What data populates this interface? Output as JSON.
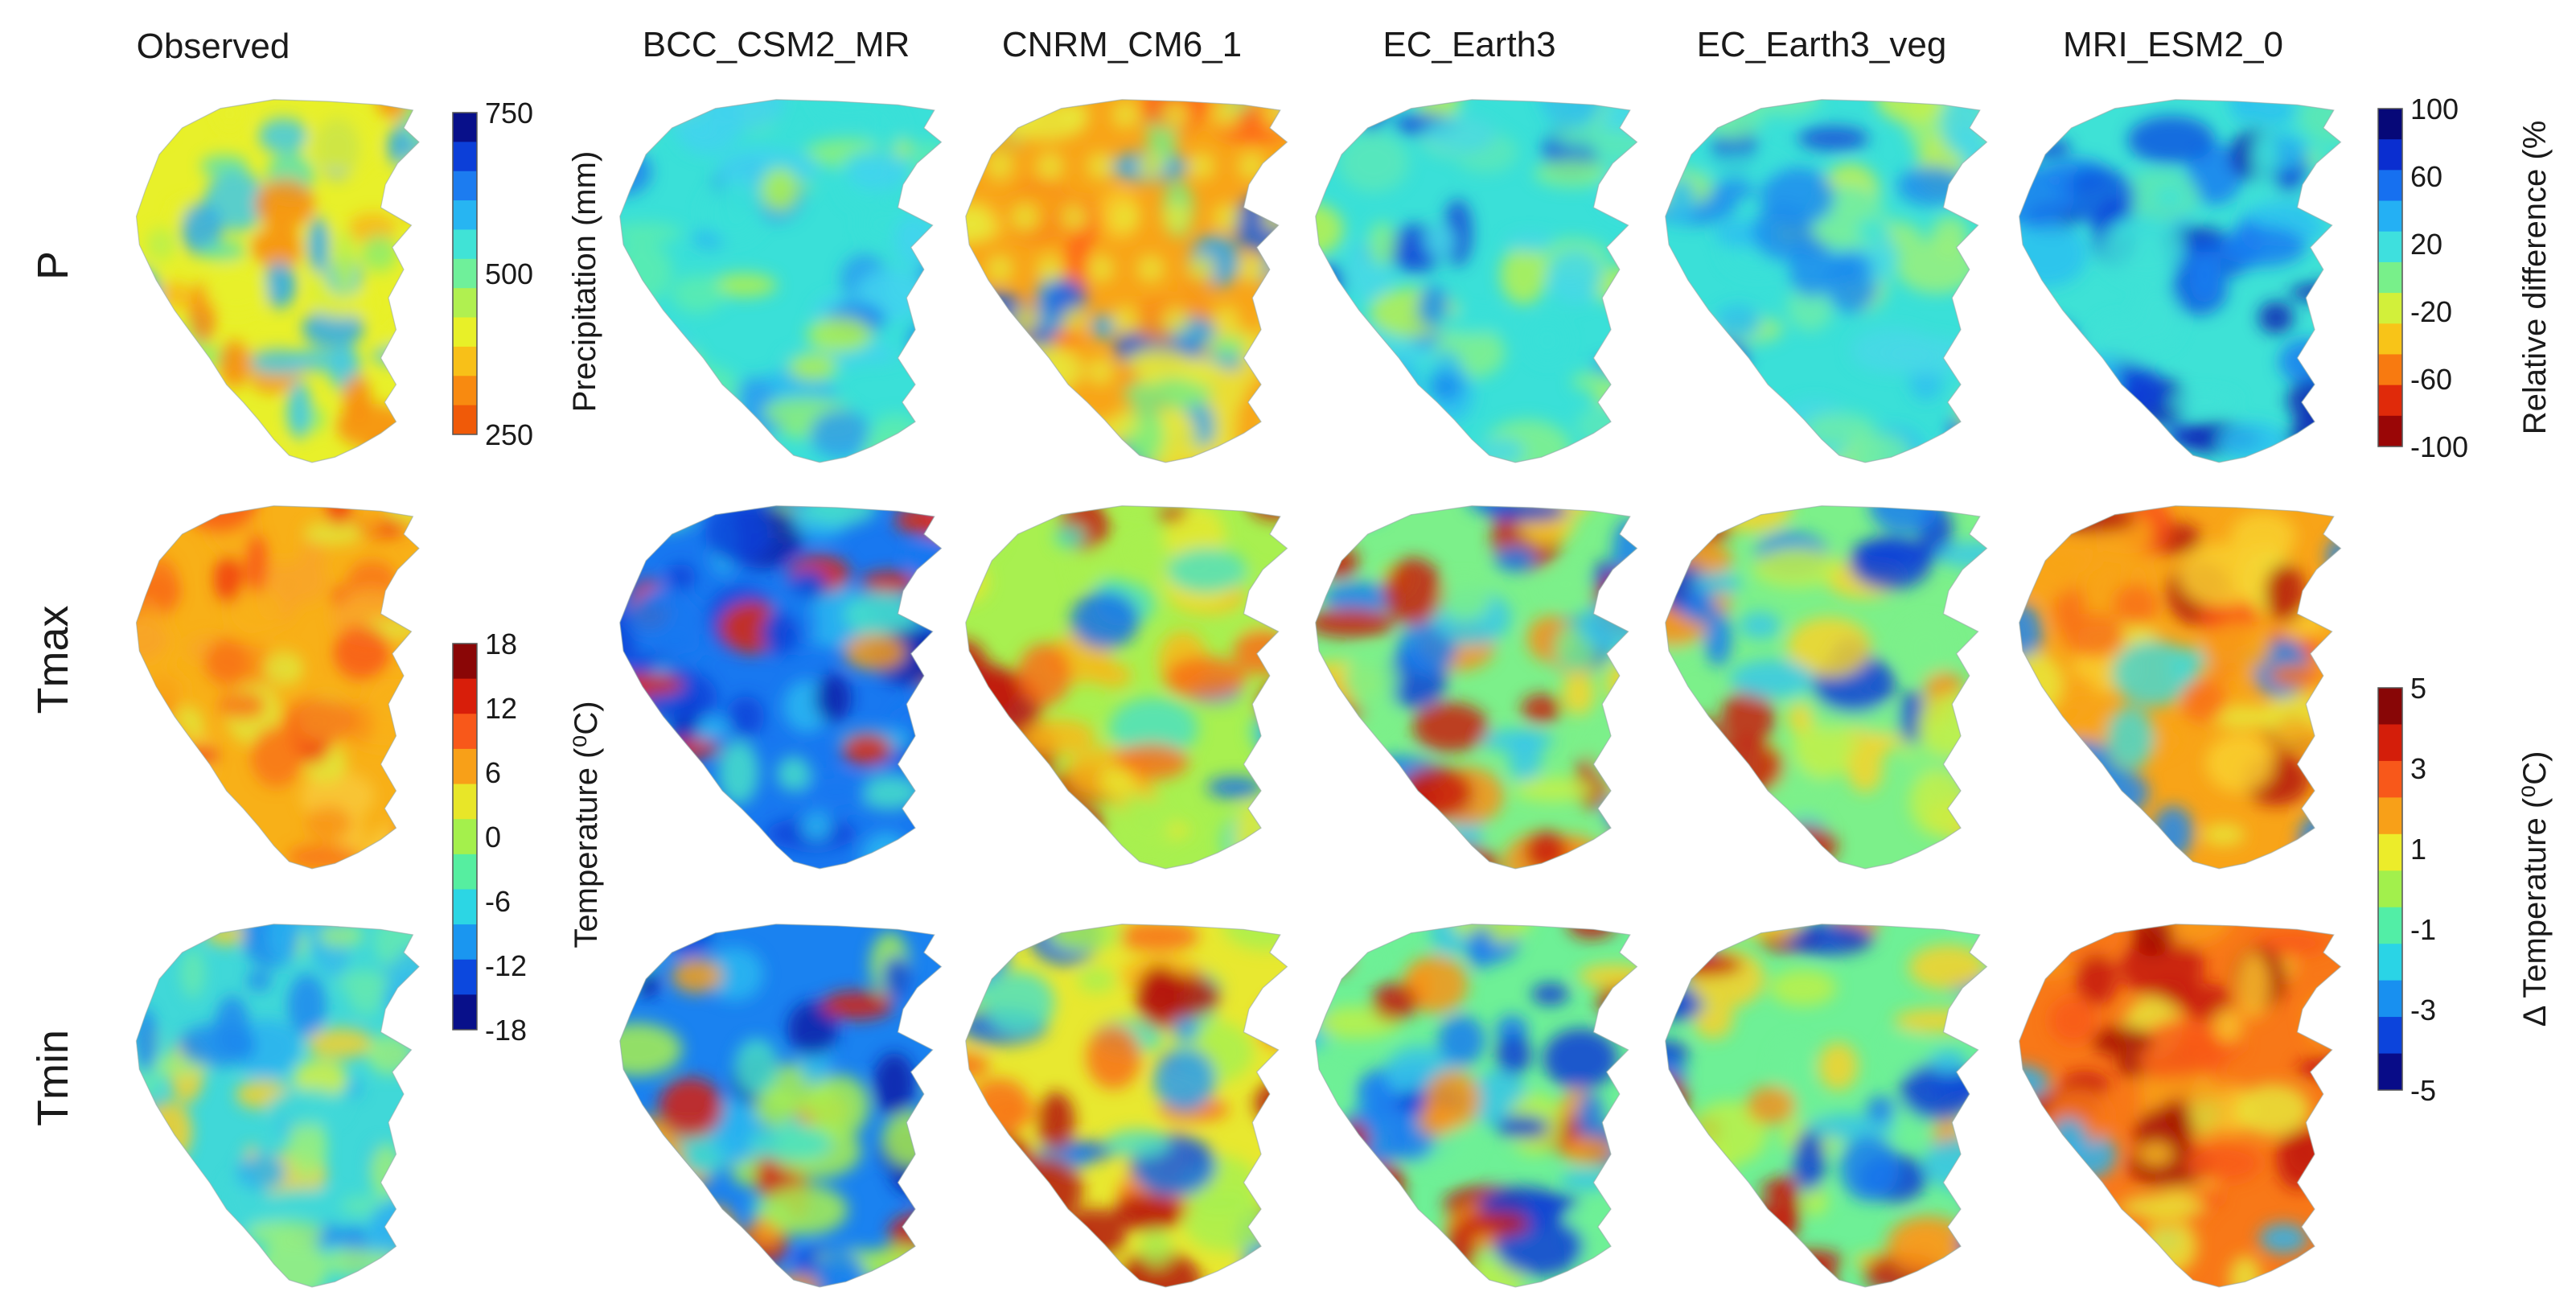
{
  "columns": [
    "Observed",
    "BCC_CSM2_MR",
    "CNRM_CM6_1",
    "EC_Earth3",
    "EC_Earth3_veg",
    "MRI_ESM2_0"
  ],
  "rows": [
    "P",
    "Tmax",
    "Tmin"
  ],
  "colorbars": {
    "precip": {
      "label": "Precipitation (mm)",
      "ticks": [
        "750",
        "500",
        "250"
      ],
      "colors": [
        "#08108a",
        "#0c3fd8",
        "#1c7cf0",
        "#27b5f2",
        "#40e3d6",
        "#6ff09a",
        "#b0f050",
        "#e8f028",
        "#f8c018",
        "#f88a10",
        "#f05a08"
      ]
    },
    "reldiff": {
      "label": "Relative difference (%",
      "ticks": [
        "100",
        "60",
        "20",
        "-20",
        "-60",
        "-100"
      ],
      "colors": [
        "#060878",
        "#0a2ed0",
        "#1670f0",
        "#24b0f4",
        "#3ee0de",
        "#78f08a",
        "#d2f03a",
        "#f8c418",
        "#f87a10",
        "#e02a0a",
        "#9a0606"
      ]
    },
    "temp": {
      "label": "Temperature (⁰C)",
      "ticks": [
        "18",
        "12",
        "6",
        "0",
        "-6",
        "-12",
        "-18"
      ],
      "colors": [
        "#8a0606",
        "#d81e0a",
        "#f8581a",
        "#f8a018",
        "#e8e628",
        "#a4f04c",
        "#56eea0",
        "#2cd6e4",
        "#1a96f0",
        "#0c48de",
        "#08108a"
      ]
    },
    "dtemp": {
      "label": "Δ Temperature (⁰C)",
      "ticks": [
        "5",
        "3",
        "1",
        "-1",
        "-3",
        "-5"
      ],
      "colors": [
        "#880606",
        "#d41e0a",
        "#f8581a",
        "#f8a018",
        "#ecec2a",
        "#a2f04c",
        "#52eea6",
        "#2ad4e6",
        "#1890f0",
        "#0c44dc",
        "#080c88"
      ]
    }
  },
  "map_palettes": {
    "P": [
      [
        "#e8f02a",
        "#b8f04c",
        "#8cec6c",
        "#5ae0b0",
        "#40c8e8",
        "#2aa8f0",
        "#f8b418",
        "#f88a10"
      ],
      [
        "#3ae0d8",
        "#5cecae",
        "#8cf07a",
        "#42d2ee",
        "#2ab6f2",
        "#b2f04a",
        "#1c80ec",
        "#2c9cf0"
      ],
      [
        "#f8a418",
        "#f88a18",
        "#e8e838",
        "#ff6418",
        "#f8c828",
        "#2aa8f0",
        "#78ec80",
        "#1a62e2"
      ],
      [
        "#3ae0d8",
        "#5ce8b8",
        "#84f08a",
        "#2ebef0",
        "#1c8cee",
        "#b6f050",
        "#48d8e6",
        "#1450d8"
      ],
      [
        "#3ae0d8",
        "#6cecaa",
        "#9cf07a",
        "#2ebef0",
        "#1c8cee",
        "#c6f048",
        "#48d8e6",
        "#1450d8"
      ],
      [
        "#3ee2d6",
        "#2cc0f0",
        "#1a7ef0",
        "#0c40d8",
        "#5ee8b2",
        "#1058e0",
        "#0a24b4",
        "#84f08c"
      ]
    ],
    "Tmax": [
      [
        "#f8b018",
        "#f89418",
        "#f87418",
        "#f85a18",
        "#f8c838",
        "#e0e838",
        "#f03c10",
        "#f8a428"
      ],
      [
        "#1878f0",
        "#2cb8f0",
        "#0e42d8",
        "#0a1ca8",
        "#48e0c8",
        "#9cf060",
        "#e02a0a",
        "#f8a018"
      ],
      [
        "#a8f050",
        "#e8e830",
        "#f8b818",
        "#4ce0c0",
        "#2aa0f0",
        "#f87018",
        "#c41a08",
        "#1470ea"
      ],
      [
        "#7cf08a",
        "#c4f048",
        "#f8d428",
        "#38c8e8",
        "#1a7ef0",
        "#f89018",
        "#c81c08",
        "#0c40d8"
      ],
      [
        "#7cf08a",
        "#c4f048",
        "#f8d428",
        "#38c8e8",
        "#1a7ef0",
        "#f89018",
        "#c81c08",
        "#0c40d8"
      ],
      [
        "#f8a418",
        "#f8d030",
        "#e8e838",
        "#f87018",
        "#48d8d0",
        "#b41408",
        "#1c88f0",
        "#f84c14"
      ]
    ],
    "Tmin": [
      [
        "#40d8d8",
        "#2cb0f0",
        "#64e8b0",
        "#9cf07a",
        "#1c88ee",
        "#d8f040",
        "#38c0e8",
        "#f8d028"
      ],
      [
        "#1a82f0",
        "#0e46da",
        "#0a20a8",
        "#2cb8f0",
        "#48e0c8",
        "#d81e0a",
        "#f8a018",
        "#a8f050"
      ],
      [
        "#e8e830",
        "#f8b418",
        "#a8f050",
        "#50e0c0",
        "#2a9cf0",
        "#f87018",
        "#b41408",
        "#1468e8"
      ],
      [
        "#6ef096",
        "#bcf048",
        "#f8d028",
        "#36c4e8",
        "#1a7cf0",
        "#f89418",
        "#c41a08",
        "#0c3cd6"
      ],
      [
        "#6ef096",
        "#bcf048",
        "#f8d028",
        "#36c4e8",
        "#1a7cf0",
        "#f89418",
        "#c41a08",
        "#0c3cd6"
      ],
      [
        "#f87818",
        "#f89c18",
        "#f85a18",
        "#f8c02a",
        "#c41a08",
        "#e8e438",
        "#2cb4f0",
        "#a41006"
      ]
    ]
  }
}
